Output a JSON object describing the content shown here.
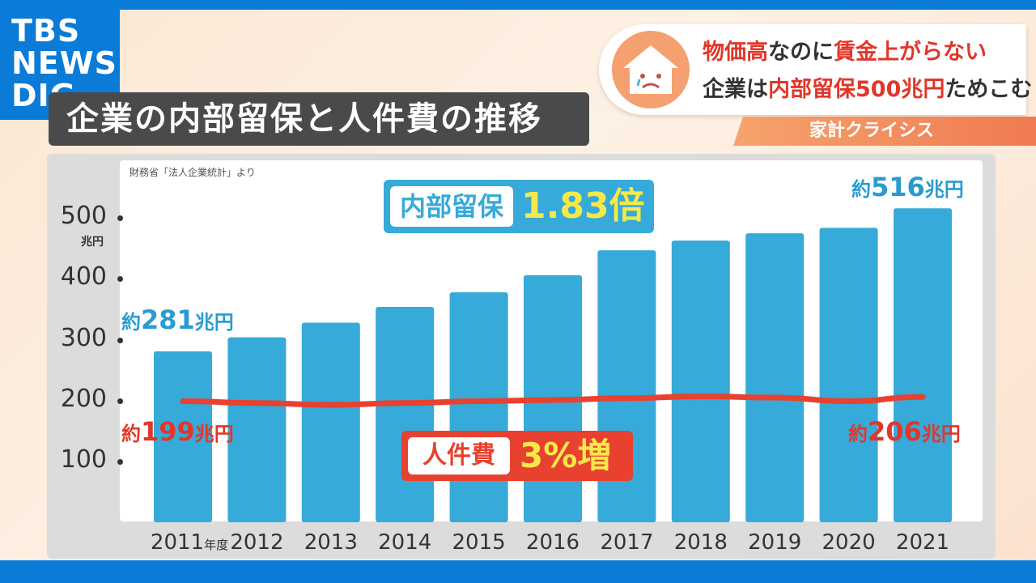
{
  "brand": {
    "line1": "TBS",
    "line2": "NEWS",
    "line3": "DIG",
    "arrow": "▾"
  },
  "title": "企業の内部留保と人件費の推移",
  "headline": {
    "line1_a": "物価高",
    "line1_b": "なのに",
    "line1_c": "賃金上がらない",
    "line2_a": "企業は",
    "line2_b": "内部留保500兆円",
    "line2_c": "ためこむ",
    "icon": "sad-house-icon"
  },
  "category_tag": "家計クライシス",
  "source": "財務省「法人企業統計」より",
  "badges": {
    "retained_label": "内部留保",
    "retained_value": "1.83倍",
    "labor_label": "人件費",
    "labor_value": "3%増"
  },
  "annotations": {
    "retained_start_a": "約",
    "retained_start_num": "281",
    "retained_start_unit": "兆円",
    "retained_end_a": "約",
    "retained_end_num": "516",
    "retained_end_unit": "兆円",
    "labor_start_a": "約",
    "labor_start_num": "199",
    "labor_start_unit": "兆円",
    "labor_end_a": "約",
    "labor_end_num": "206",
    "labor_end_unit": "兆円"
  },
  "colors": {
    "bar": "#36aad8",
    "line": "#e8412f",
    "accent": "#0a7bd6"
  },
  "chart_data": {
    "type": "bar",
    "categories": [
      "2011",
      "2012",
      "2013",
      "2014",
      "2015",
      "2016",
      "2017",
      "2018",
      "2019",
      "2020",
      "2021"
    ],
    "first_category_suffix": "年度",
    "y_unit": "兆円",
    "yticks": [
      "500",
      "400",
      "300",
      "200",
      "100"
    ],
    "ytick_values": [
      500,
      400,
      300,
      200,
      100
    ],
    "ylim": [
      0,
      550
    ],
    "grid": false,
    "series": [
      {
        "type": "bar",
        "values": [
          281,
          304,
          328,
          354,
          378,
          406,
          447,
          463,
          475,
          484,
          516
        ]
      },
      {
        "type": "line",
        "values": [
          199,
          196,
          193,
          196,
          199,
          201,
          204,
          207,
          205,
          199,
          206
        ]
      }
    ]
  }
}
